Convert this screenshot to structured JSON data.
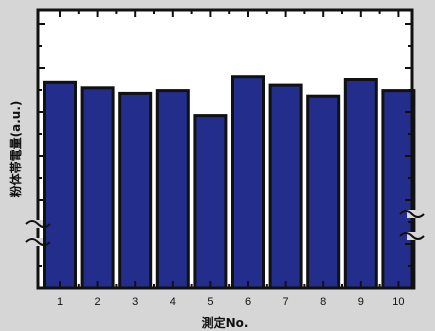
{
  "chart_data": {
    "type": "bar",
    "title": "",
    "xlabel": "測定No.",
    "ylabel": "粉体帯電量(a.u.)",
    "categories": [
      "1",
      "2",
      "3",
      "4",
      "5",
      "6",
      "7",
      "8",
      "9",
      "10"
    ],
    "values": [
      0.74,
      0.72,
      0.7,
      0.71,
      0.62,
      0.76,
      0.73,
      0.69,
      0.75,
      0.71
    ],
    "ylim": [
      0,
      1
    ],
    "y_tick_labels_shown": false,
    "y_axis_break": true,
    "grid": false,
    "legend": "none",
    "colors": {
      "bar_fill": "#232e8c",
      "bar_stroke": "#111111",
      "plot_background": "#ffffff",
      "page_background": "#d6d6d6",
      "axis": "#111111"
    }
  }
}
